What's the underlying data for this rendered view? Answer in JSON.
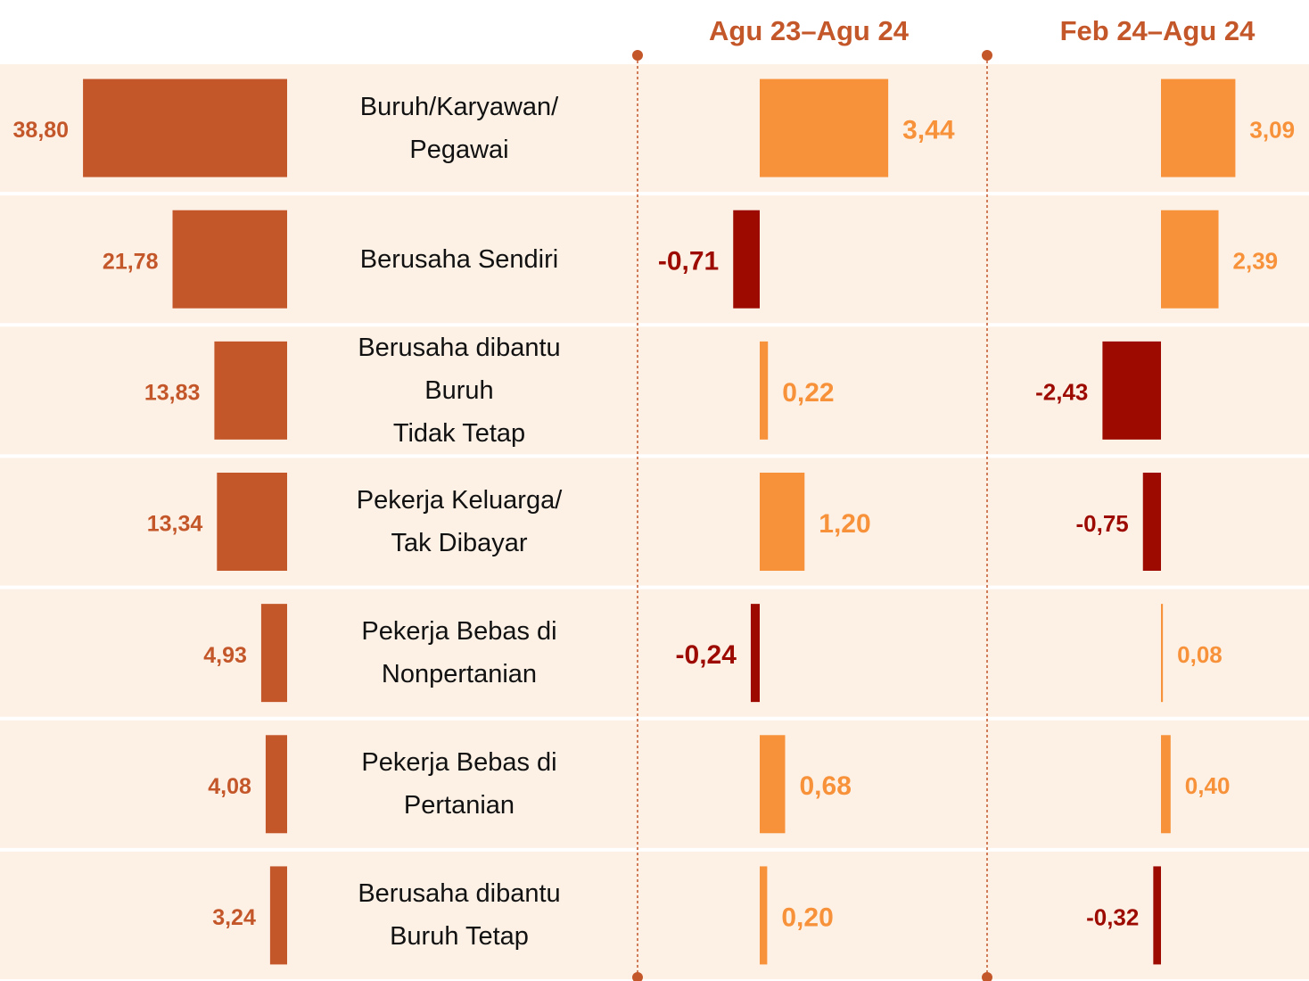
{
  "chart_data": {
    "type": "bar",
    "orientation": "horizontal",
    "categories": [
      "Buruh/Karyawan/\nPegawai",
      "Berusaha Sendiri",
      "Berusaha dibantu\nBuruh\nTidak Tetap",
      "Pekerja Keluarga/\nTak Dibayar",
      "Pekerja Bebas di\nNonpertanian",
      "Pekerja Bebas di\nPertanian",
      "Berusaha dibantu\nBuruh Tetap"
    ],
    "series": [
      {
        "color": "#c4572a",
        "values": [
          38.8,
          21.78,
          13.83,
          13.34,
          4.93,
          4.08,
          3.24
        ],
        "value_labels": [
          "38,80",
          "21,78",
          "13,83",
          "13,34",
          "4,93",
          "4,08",
          "3,24"
        ]
      },
      {
        "name": "Agu 23–Agu 24",
        "color": "#f7923a",
        "negative_color": "#9c0a00",
        "values": [
          3.44,
          -0.71,
          0.22,
          1.2,
          -0.24,
          0.68,
          0.2
        ],
        "value_labels": [
          "3,44",
          "-0,71",
          "0,22",
          "1,20",
          "-0,24",
          "0,68",
          "0,20"
        ]
      },
      {
        "name": "Feb 24–Agu 24",
        "color": "#f7923a",
        "negative_color": "#9c0a00",
        "values": [
          3.09,
          2.39,
          -2.43,
          -0.75,
          0.08,
          0.4,
          -0.32
        ],
        "value_labels": [
          "3,09",
          "2,39",
          "-2,43",
          "-0,75",
          "0,08",
          "0,40",
          "-0,32"
        ]
      }
    ]
  }
}
